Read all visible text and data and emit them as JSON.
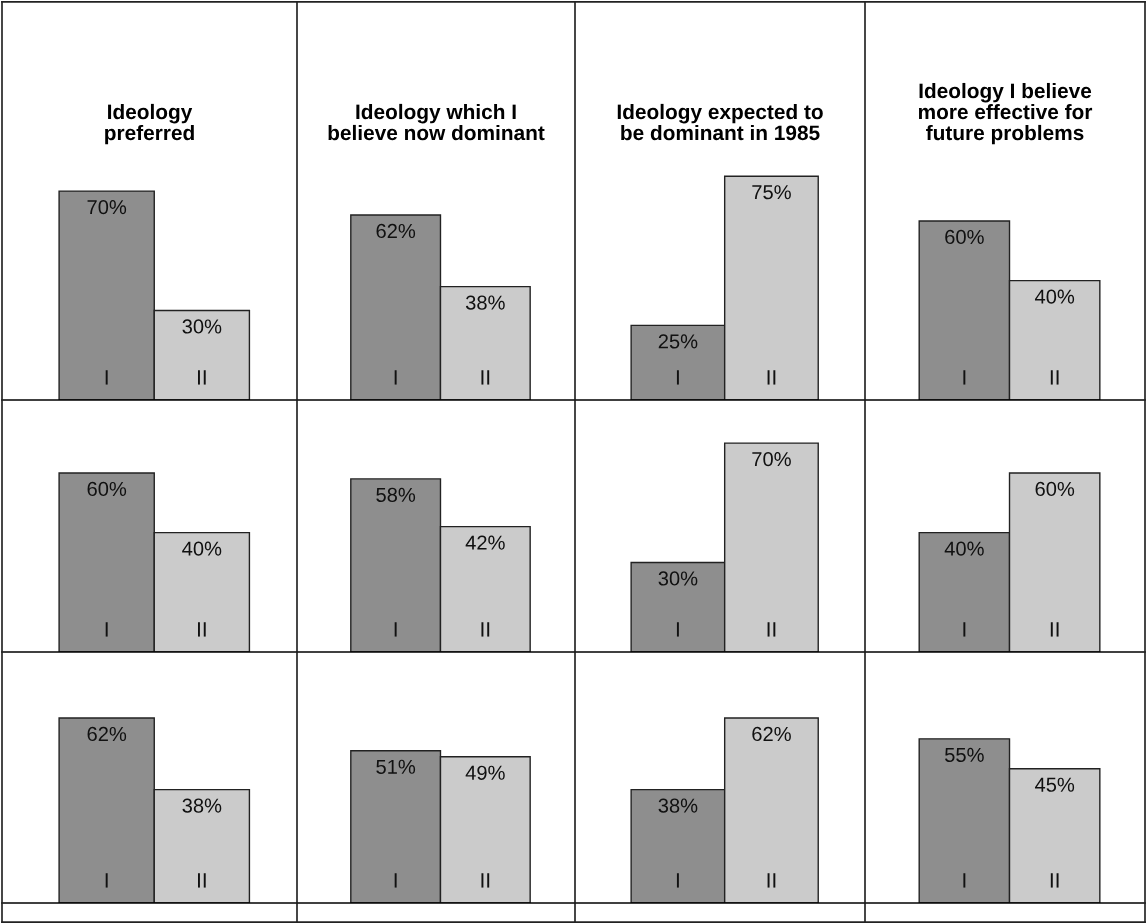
{
  "chart_data": [
    {
      "type": "bar",
      "title": "Ideology\npreferred",
      "categories": [
        "I",
        "II"
      ],
      "values": [
        70,
        30
      ],
      "colors": [
        "#8e8e8e",
        "#cbcbcb"
      ],
      "value_labels": [
        "70%",
        "30%"
      ]
    },
    {
      "type": "bar",
      "title": "Ideology which I\nbelieve now dominant",
      "categories": [
        "I",
        "II"
      ],
      "values": [
        62,
        38
      ],
      "colors": [
        "#8e8e8e",
        "#cbcbcb"
      ],
      "value_labels": [
        "62%",
        "38%"
      ]
    },
    {
      "type": "bar",
      "title": "Ideology expected to\nbe dominant in 1985",
      "categories": [
        "I",
        "II"
      ],
      "values": [
        25,
        75
      ],
      "colors": [
        "#8e8e8e",
        "#cbcbcb"
      ],
      "value_labels": [
        "25%",
        "75%"
      ]
    },
    {
      "type": "bar",
      "title": "Ideology I believe\nmore effective for\nfuture problems",
      "categories": [
        "I",
        "II"
      ],
      "values": [
        60,
        40
      ],
      "colors": [
        "#8e8e8e",
        "#cbcbcb"
      ],
      "value_labels": [
        "60%",
        "40%"
      ]
    },
    {
      "type": "bar",
      "categories": [
        "I",
        "II"
      ],
      "values": [
        60,
        40
      ],
      "colors": [
        "#8e8e8e",
        "#cbcbcb"
      ],
      "value_labels": [
        "60%",
        "40%"
      ]
    },
    {
      "type": "bar",
      "categories": [
        "I",
        "II"
      ],
      "values": [
        58,
        42
      ],
      "colors": [
        "#8e8e8e",
        "#cbcbcb"
      ],
      "value_labels": [
        "58%",
        "42%"
      ]
    },
    {
      "type": "bar",
      "categories": [
        "I",
        "II"
      ],
      "values": [
        30,
        70
      ],
      "colors": [
        "#8e8e8e",
        "#cbcbcb"
      ],
      "value_labels": [
        "30%",
        "70%"
      ]
    },
    {
      "type": "bar",
      "categories": [
        "I",
        "II"
      ],
      "values": [
        40,
        60
      ],
      "colors": [
        "#8e8e8e",
        "#cbcbcb"
      ],
      "value_labels": [
        "40%",
        "60%"
      ]
    },
    {
      "type": "bar",
      "categories": [
        "I",
        "II"
      ],
      "values": [
        62,
        38
      ],
      "colors": [
        "#8e8e8e",
        "#cbcbcb"
      ],
      "value_labels": [
        "62%",
        "38%"
      ]
    },
    {
      "type": "bar",
      "categories": [
        "I",
        "II"
      ],
      "values": [
        51,
        49
      ],
      "colors": [
        "#8e8e8e",
        "#cbcbcb"
      ],
      "value_labels": [
        "51%",
        "49%"
      ]
    },
    {
      "type": "bar",
      "categories": [
        "I",
        "II"
      ],
      "values": [
        38,
        62
      ],
      "colors": [
        "#8e8e8e",
        "#cbcbcb"
      ],
      "value_labels": [
        "38%",
        "62%"
      ]
    },
    {
      "type": "bar",
      "categories": [
        "I",
        "II"
      ],
      "values": [
        55,
        45
      ],
      "colors": [
        "#8e8e8e",
        "#cbcbcb"
      ],
      "value_labels": [
        "55%",
        "45%"
      ]
    }
  ]
}
